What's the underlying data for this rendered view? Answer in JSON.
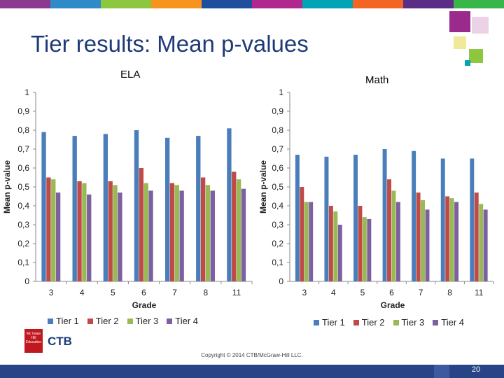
{
  "slide": {
    "title": "Tier results: Mean p-values",
    "page_number": "20",
    "copyright": "Copyright © 2014 CTB/McGraw-Hill LLC.",
    "logo_text": "CTB",
    "logo_badge": "Mc Graw Hill Education",
    "top_bar_colors": [
      "#8b3a8f",
      "#2e8bc7",
      "#8dc63f",
      "#f7941d",
      "#1f4e9c",
      "#b0288d",
      "#00a4b4",
      "#f26522",
      "#5b2d86",
      "#39b54a"
    ],
    "deco_colors": [
      "#9b2a8d",
      "#8dc63f",
      "#ecd2e6",
      "#00a4b4",
      "#f2e89a"
    ]
  },
  "chart_data": [
    {
      "type": "bar",
      "title": "ELA",
      "xlabel": "Grade",
      "ylabel": "Mean p-value",
      "categories": [
        "3",
        "4",
        "5",
        "6",
        "7",
        "8",
        "11"
      ],
      "ylim": [
        0,
        1
      ],
      "yticks": [
        "0",
        "0,1",
        "0,2",
        "0,3",
        "0,4",
        "0,5",
        "0,6",
        "0,7",
        "0,8",
        "0,9",
        "1"
      ],
      "grid": false,
      "legend": "bottom",
      "series": [
        {
          "name": "Tier 1",
          "color": "#4a7ebb",
          "values": [
            0.79,
            0.77,
            0.78,
            0.8,
            0.76,
            0.77,
            0.81
          ]
        },
        {
          "name": "Tier 2",
          "color": "#be4b48",
          "values": [
            0.55,
            0.53,
            0.53,
            0.6,
            0.52,
            0.55,
            0.58
          ]
        },
        {
          "name": "Tier 3",
          "color": "#98b954",
          "values": [
            0.54,
            0.52,
            0.51,
            0.52,
            0.51,
            0.51,
            0.54
          ]
        },
        {
          "name": "Tier 4",
          "color": "#7d60a0",
          "values": [
            0.47,
            0.46,
            0.47,
            0.48,
            0.48,
            0.48,
            0.49
          ]
        }
      ]
    },
    {
      "type": "bar",
      "title": "Math",
      "xlabel": "Grade",
      "ylabel": "Mean p-value",
      "categories": [
        "3",
        "4",
        "5",
        "6",
        "7",
        "8",
        "11"
      ],
      "ylim": [
        0,
        1
      ],
      "yticks": [
        "0",
        "0,1",
        "0,2",
        "0,3",
        "0,4",
        "0,5",
        "0,6",
        "0,7",
        "0,8",
        "0,9",
        "1"
      ],
      "grid": false,
      "legend": "bottom",
      "series": [
        {
          "name": "Tier 1",
          "color": "#4a7ebb",
          "values": [
            0.67,
            0.66,
            0.67,
            0.7,
            0.69,
            0.65,
            0.65
          ]
        },
        {
          "name": "Tier 2",
          "color": "#be4b48",
          "values": [
            0.5,
            0.4,
            0.4,
            0.54,
            0.47,
            0.45,
            0.47
          ]
        },
        {
          "name": "Tier 3",
          "color": "#98b954",
          "values": [
            0.42,
            0.37,
            0.34,
            0.48,
            0.43,
            0.44,
            0.41
          ]
        },
        {
          "name": "Tier 4",
          "color": "#7d60a0",
          "values": [
            0.42,
            0.3,
            0.33,
            0.42,
            0.38,
            0.42,
            0.38
          ]
        }
      ]
    }
  ]
}
